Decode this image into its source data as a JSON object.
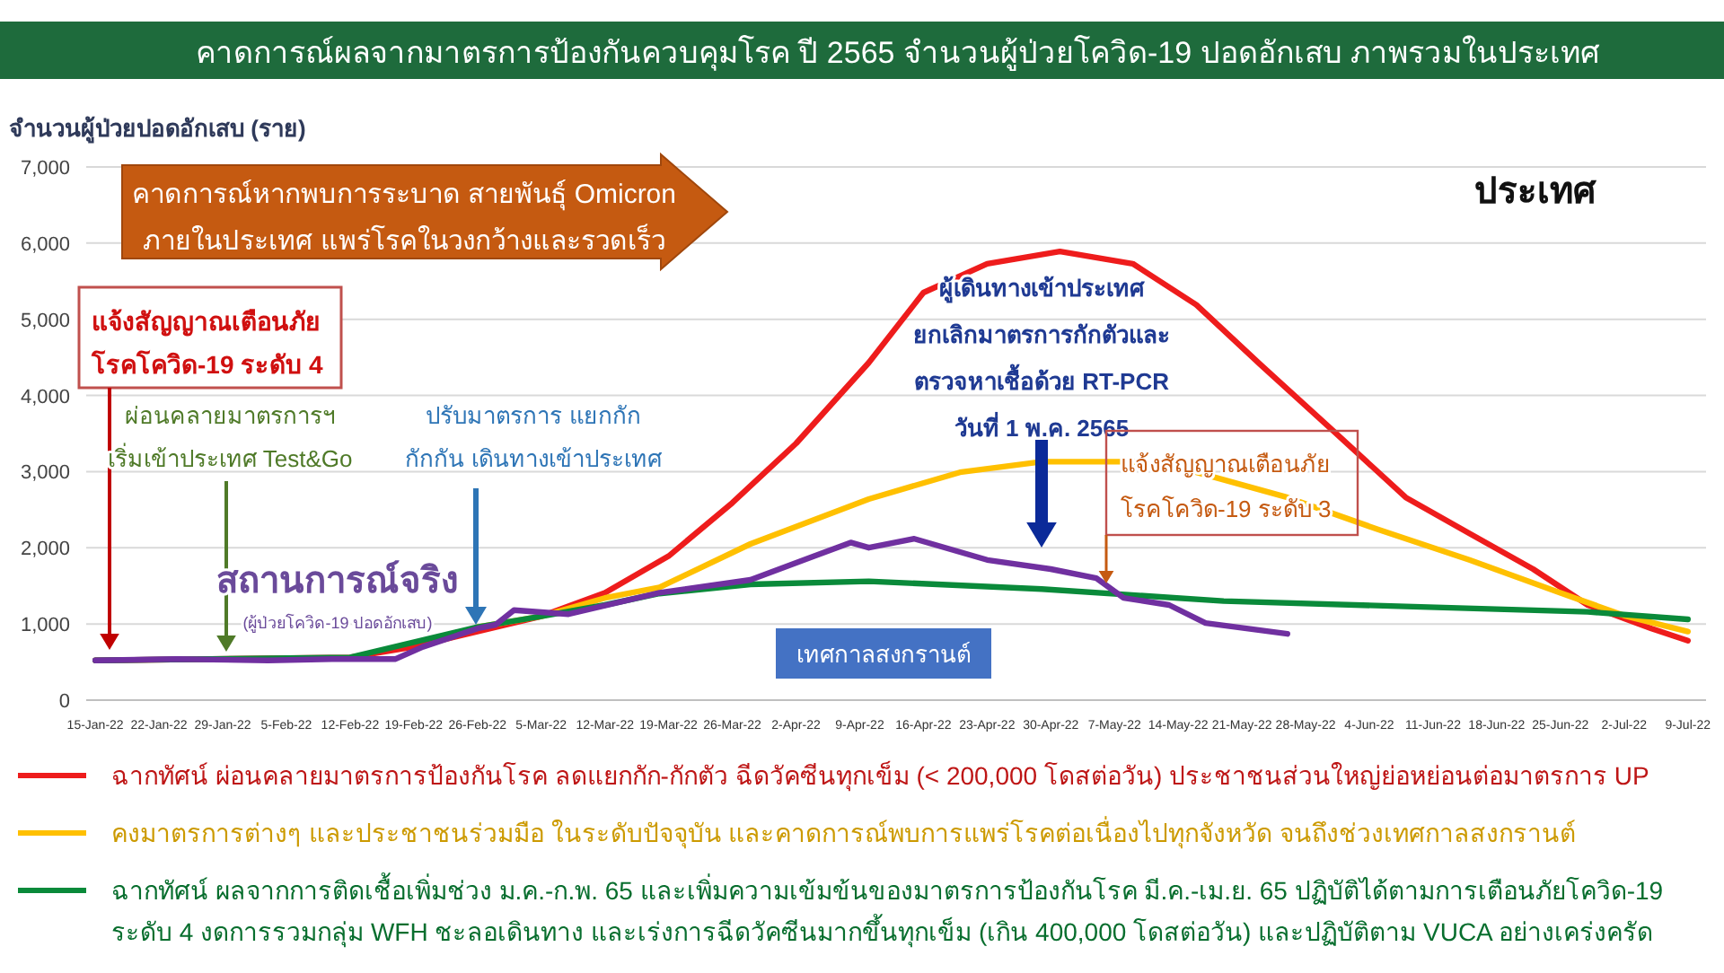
{
  "chart_data": {
    "type": "line",
    "title": "คาดการณ์ผลจากมาตรการป้องกันควบคุมโรค ปี 2565 จำนวนผู้ป่วยโควิด-19 ปอดอักเสบ ภาพรวมในประเทศ",
    "subtitle": "ประเทศ",
    "ylabel": "จำนวนผู้ป่วยปอดอักเสบ (ราย)",
    "xlim": [
      "--01-14",
      "--07-11"
    ],
    "xticks": [
      {
        "value": "--01-15",
        "label": "15-Jan-22"
      },
      {
        "value": "--01-22",
        "label": "22-Jan-22"
      },
      {
        "value": "--01-29",
        "label": "29-Jan-22"
      },
      {
        "value": "--02-05",
        "label": "5-Feb-22"
      },
      {
        "value": "--02-12",
        "label": "12-Feb-22"
      },
      {
        "value": "--02-19",
        "label": "19-Feb-22"
      },
      {
        "value": "--02-26",
        "label": "26-Feb-22"
      },
      {
        "value": "--03-05",
        "label": "5-Mar-22"
      },
      {
        "value": "--03-12",
        "label": "12-Mar-22"
      },
      {
        "value": "--03-19",
        "label": "19-Mar-22"
      },
      {
        "value": "--03-26",
        "label": "26-Mar-22"
      },
      {
        "value": "--04-02",
        "label": "2-Apr-22"
      },
      {
        "value": "--04-09",
        "label": "9-Apr-22"
      },
      {
        "value": "--04-16",
        "label": "16-Apr-22"
      },
      {
        "value": "--04-23",
        "label": "23-Apr-22"
      },
      {
        "value": "--04-30",
        "label": "30-Apr-22"
      },
      {
        "value": "--05-07",
        "label": "7-May-22"
      },
      {
        "value": "--05-14",
        "label": "14-May-22"
      },
      {
        "value": "--05-21",
        "label": "21-May-22"
      },
      {
        "value": "--05-28",
        "label": "28-May-22"
      },
      {
        "value": "--06-04",
        "label": "4-Jun-22"
      },
      {
        "value": "--06-11",
        "label": "11-Jun-22"
      },
      {
        "value": "--06-18",
        "label": "18-Jun-22"
      },
      {
        "value": "--06-25",
        "label": "25-Jun-22"
      },
      {
        "value": "--07-02",
        "label": "2-Jul-22"
      },
      {
        "value": "--07-09",
        "label": "9-Jul-22"
      }
    ],
    "ylim": [
      0,
      7000
    ],
    "yticks": [
      0,
      {
        "value": 1000,
        "label": "1,000"
      },
      {
        "value": 2000,
        "label": "2,000"
      },
      {
        "value": 3000,
        "label": "3,000"
      },
      {
        "value": 4000,
        "label": "4,000"
      },
      {
        "value": 5000,
        "label": "5,000"
      },
      {
        "value": 6000,
        "label": "6,000"
      },
      {
        "value": 7000,
        "label": "7,000"
      }
    ],
    "grid": "y",
    "legend": "bottom",
    "marker": "none",
    "line_style": "solid",
    "series": [
      {
        "name": "ฉากทัศน์ ผ่อนคลายมาตรการป้องกันโรค ลดแยกกัก-กักตัว ฉีดวัคซีนทุกเข็ม (< 200,000 โดสต่อวัน) ประชาชนส่วนใหญ่ย่อหย่อนต่อมาตรการ UP",
        "color": "#ee1c1c",
        "x": [
          "--01-15",
          "--02-12",
          "--02-19",
          "--03-05",
          "--03-12",
          "--03-19",
          "--03-26",
          "--04-02",
          "--04-10",
          "--04-16",
          "--04-23",
          "--05-01",
          "--05-09",
          "--05-16",
          "--05-23",
          "--05-31",
          "--06-08",
          "--06-15",
          "--06-22",
          "--06-28",
          "--07-05",
          "--07-09"
        ],
        "values": [
          520,
          560,
          700,
          1100,
          1410,
          1890,
          2590,
          3370,
          4430,
          5350,
          5730,
          5890,
          5730,
          5190,
          4410,
          3540,
          2660,
          2190,
          1720,
          1250,
          940,
          780
        ]
      },
      {
        "name": "คงมาตรการต่างๆ และประชาชนร่วมมือ ในระดับปัจจุบัน และคาดการณ์พบการแพร่โรคต่อเนื่องไปทุกจังหวัด จนถึงช่วงเทศกาลสงกรานต์",
        "color": "#ffc000",
        "x": [
          "--02-26",
          "--03-05",
          "--03-12",
          "--03-18",
          "--03-28",
          "--04-10",
          "--04-20",
          "--04-29",
          "--05-09",
          "--05-16",
          "--05-26",
          "--06-05",
          "--06-15",
          "--06-25",
          "--07-02",
          "--07-09"
        ],
        "values": [
          960,
          1100,
          1340,
          1480,
          2050,
          2640,
          2990,
          3130,
          3130,
          2990,
          2660,
          2240,
          1840,
          1410,
          1110,
          900
        ]
      },
      {
        "name": "ฉากทัศน์ ผลจากการติดเชื้อเพิ่มช่วง ม.ค.-ก.พ. 65 และเพิ่มความเข้มข้นของมาตรการป้องกันโรค มี.ค.-เม.ย. 65 ปฏิบัติได้ตามการเตือนภัยโควิด-19 ระดับ 4 งดการรวมกลุ่ม WFH ชะลอเดินทาง และเร่งการฉีดวัคซีนมากขึ้นทุกเข็ม (เกิน 400,000 โดสต่อวัน) และปฏิบัติตาม VUCA อย่างเคร่งครัด",
        "color": "#0a8a3a",
        "x": [
          "--01-15",
          "--02-12",
          "--02-26",
          "--03-05",
          "--03-12",
          "--03-18",
          "--03-28",
          "--04-10",
          "--04-29",
          "--05-19",
          "--06-08",
          "--06-28",
          "--07-09"
        ],
        "values": [
          520,
          560,
          960,
          1100,
          1250,
          1400,
          1520,
          1560,
          1460,
          1300,
          1230,
          1160,
          1060
        ]
      },
      {
        "color": "#7030a0",
        "x": [
          "--01-15",
          "--01-24",
          "--02-03",
          "--02-10",
          "--02-17",
          "--02-20",
          "--02-26",
          "--02-28",
          "--03-02",
          "--03-08",
          "--03-18",
          "--03-28",
          "--04-04",
          "--04-08",
          "--04-10",
          "--04-15",
          "--04-23",
          "--04-30",
          "--05-05",
          "--05-08",
          "--05-13",
          "--05-17",
          "--05-26"
        ],
        "values": [
          520,
          540,
          520,
          540,
          540,
          700,
          940,
          990,
          1180,
          1130,
          1410,
          1580,
          1890,
          2070,
          2000,
          2120,
          1840,
          1720,
          1600,
          1340,
          1250,
          1010,
          870
        ]
      }
    ],
    "annotations": [
      "คาดการณ์หากพบการระบาด สายพันธุ์ Omicron\nภายในประเทศ แพร่โรคในวงกว้างและรวดเร็ว",
      "แจ้งสัญญาณเตือนภัย\nโรคโควิด-19 ระดับ 4",
      "ผ่อนคลายมาตรการฯ\nเริ่มเข้าประเทศ Test&Go",
      "ปรับมาตรการ แยกกัก\nกักกัน เดินทางเข้าประเทศ",
      "สถานการณ์จริง",
      "(ผู้ป่วยโควิด-19 ปอดอักเสบ)",
      "ผู้เดินทางเข้าประเทศ\nยกเลิกมาตรการกักตัวและ\nตรวจหาเชื้อด้วย RT-PCR\nวันที่ 1 พ.ค. 2565",
      "แจ้งสัญญาณเตือนภัย\nโรคโควิด-19 ระดับ 3",
      "เทศกาลสงกรานต์"
    ]
  }
}
